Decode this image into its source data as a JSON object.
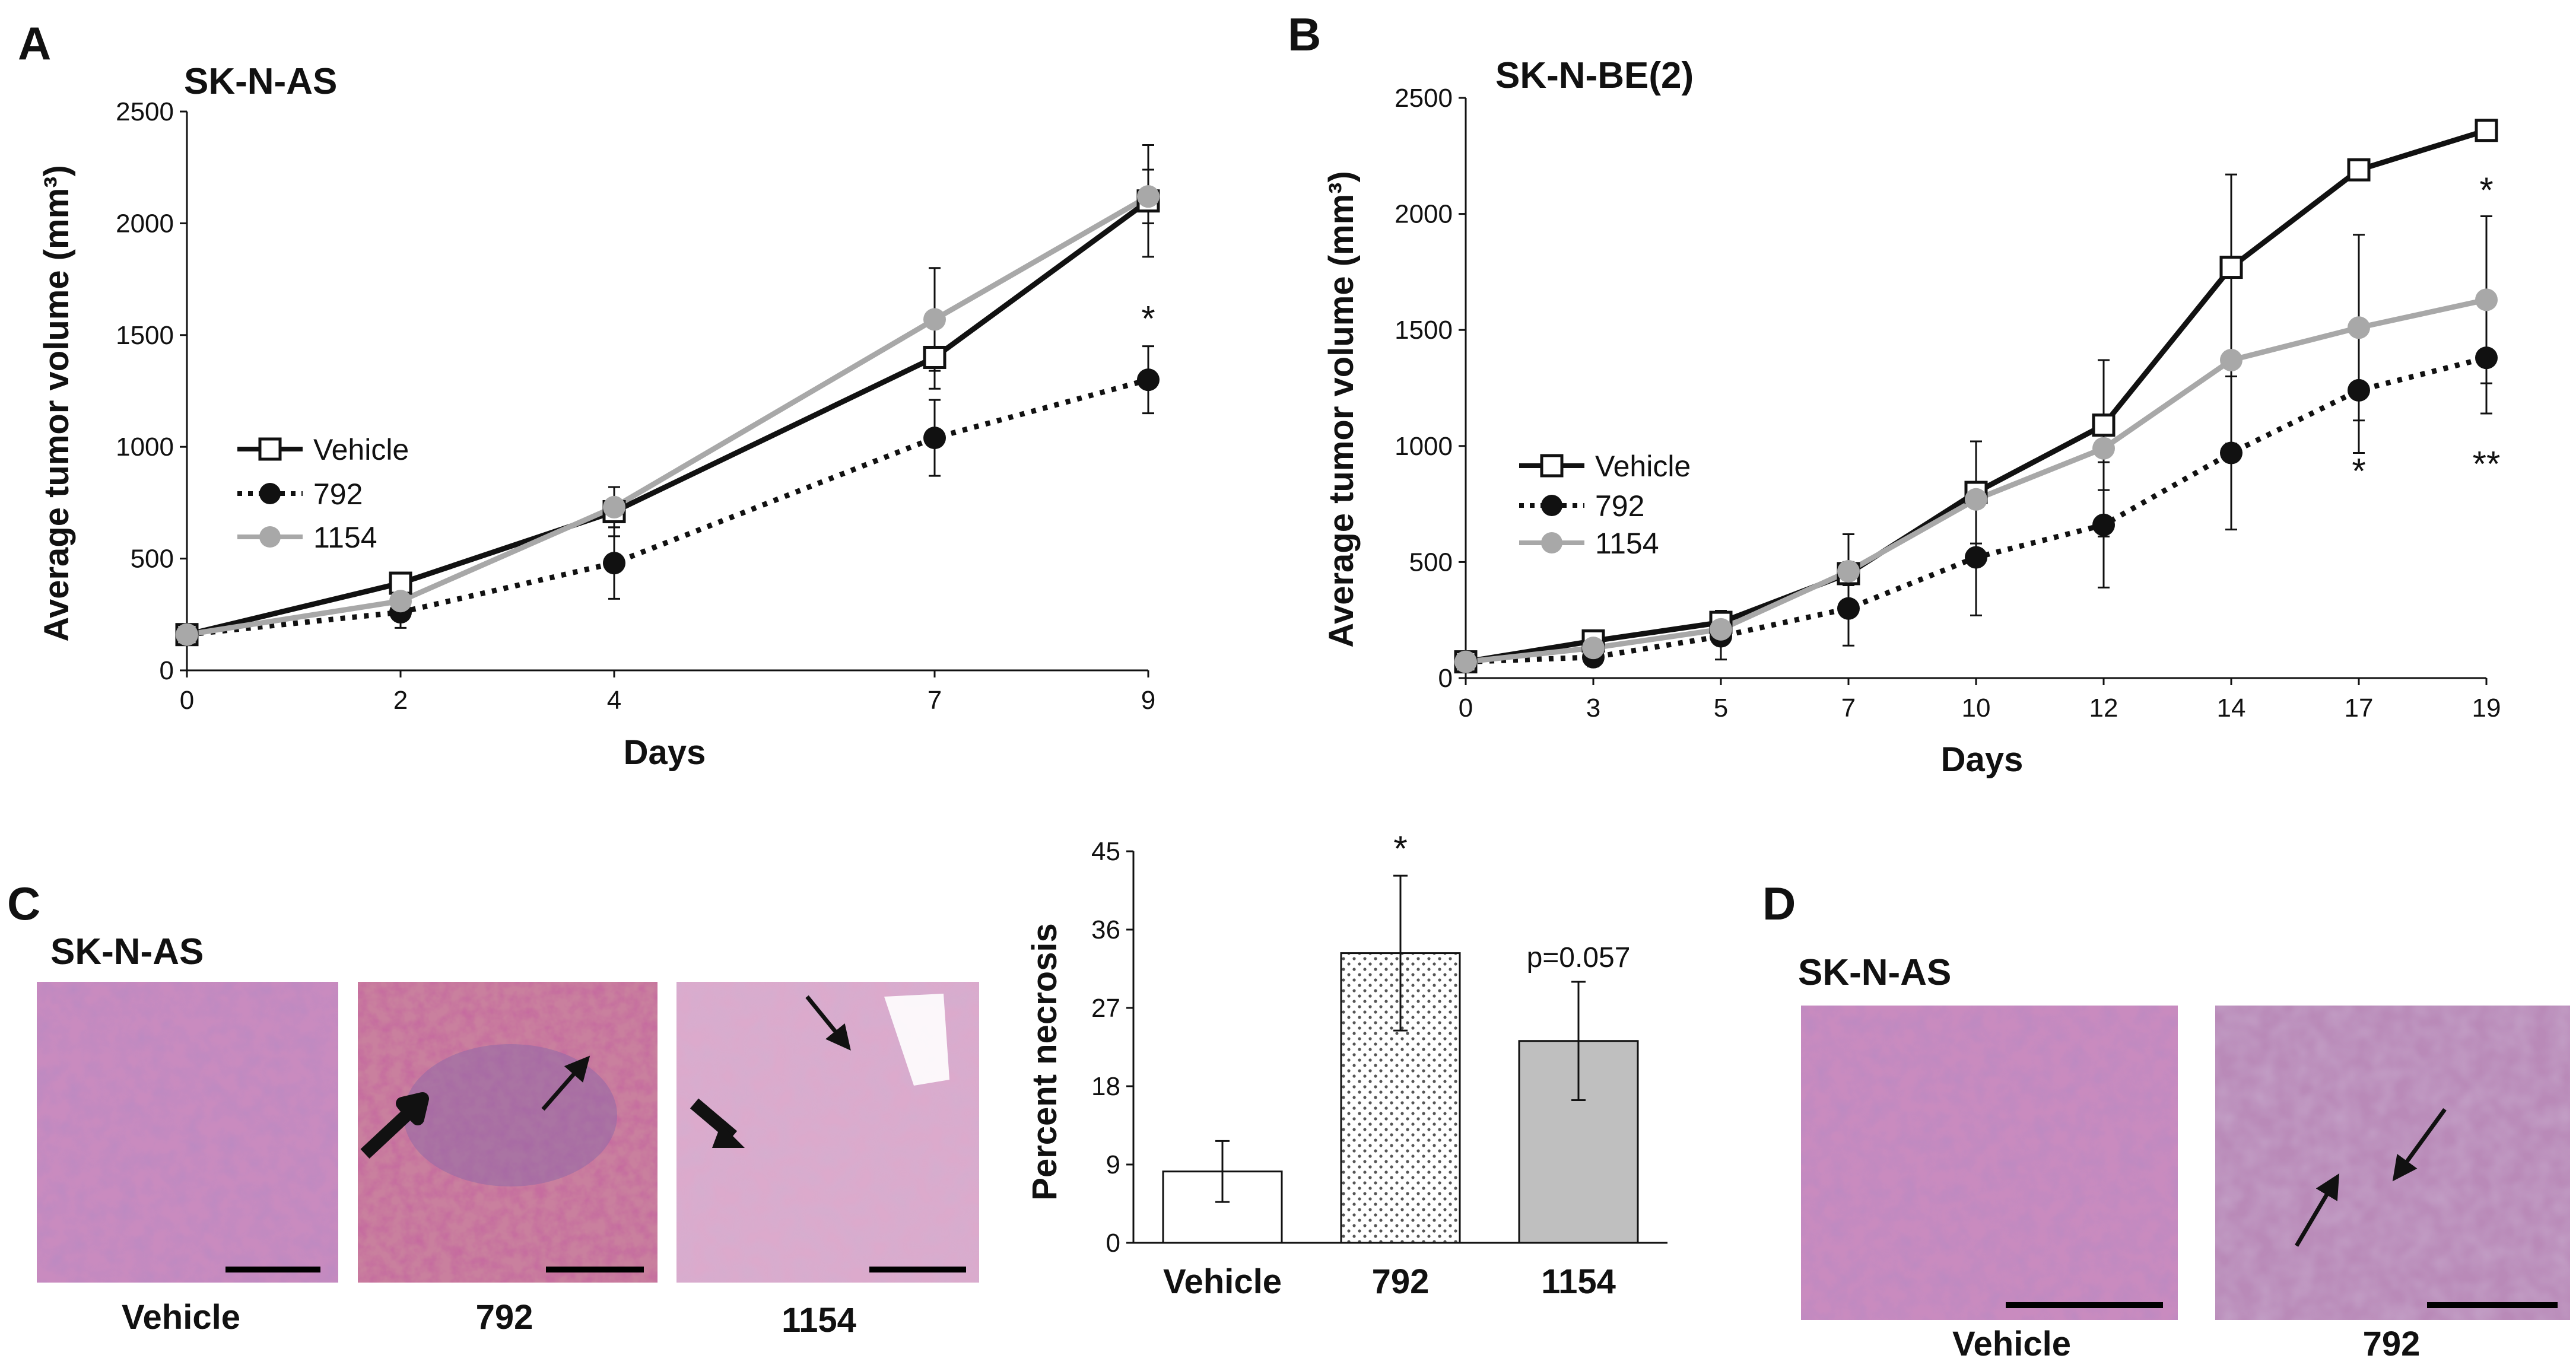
{
  "colors": {
    "vehicle": "#111111",
    "drug792": "#111111",
    "drug1154": "#a8a8a8",
    "bar_1154_fill": "#bfbfbf",
    "he_pink": "#c87db0",
    "he_purple": "#8e5a9e"
  },
  "panels": {
    "A": {
      "letter": "A"
    },
    "B": {
      "letter": "B"
    },
    "C": {
      "letter": "C",
      "cell_line": "SK-N-AS",
      "captions": [
        "Vehicle",
        "792",
        "1154"
      ]
    },
    "D": {
      "letter": "D",
      "cell_line": "SK-N-AS",
      "captions": [
        "Vehicle",
        "792"
      ]
    }
  },
  "chart_data": [
    {
      "id": "A",
      "type": "line",
      "title": "SK-N-AS",
      "xlabel": "Days",
      "ylabel": "Average tumor volume  (mm³)",
      "categories": [
        "0",
        "2",
        "4",
        "7",
        "9"
      ],
      "ylim": [
        0,
        2500
      ],
      "yticks": [
        0,
        500,
        1000,
        1500,
        2000,
        2500
      ],
      "legend_position": "middle-left",
      "series": [
        {
          "name": "Vehicle",
          "style": "solid-black-open-square",
          "values": [
            160,
            390,
            710,
            1400,
            2100
          ],
          "err": [
            30,
            40,
            110,
            140,
            250
          ]
        },
        {
          "name": "792",
          "style": "dotted-black-filled-circle",
          "values": [
            160,
            260,
            480,
            1040,
            1300
          ],
          "err": [
            30,
            70,
            160,
            170,
            150
          ]
        },
        {
          "name": "1154",
          "style": "solid-gray-filled-circle",
          "values": [
            160,
            310,
            730,
            1570,
            2120
          ],
          "err": [
            30,
            50,
            90,
            230,
            120
          ]
        }
      ],
      "annotations": [
        {
          "text": "*",
          "x": "9",
          "y": 1520
        }
      ]
    },
    {
      "id": "B",
      "type": "line",
      "title": "SK-N-BE(2)",
      "xlabel": "Days",
      "ylabel": "Average tumor volume  (mm³)",
      "categories": [
        "0",
        "3",
        "5",
        "7",
        "10",
        "12",
        "14",
        "17",
        "19"
      ],
      "ylim": [
        0,
        2500
      ],
      "yticks": [
        0,
        500,
        1000,
        1500,
        2000,
        2500
      ],
      "legend_position": "middle-left",
      "series": [
        {
          "name": "Vehicle",
          "style": "solid-black-open-square",
          "values": [
            70,
            160,
            240,
            450,
            800,
            1090,
            1770,
            2190,
            2360
          ],
          "err": [
            20,
            30,
            50,
            50,
            220,
            280,
            400,
            40,
            30
          ]
        },
        {
          "name": "792",
          "style": "dotted-black-filled-circle",
          "values": [
            70,
            90,
            180,
            300,
            520,
            660,
            970,
            1240,
            1380
          ],
          "err": [
            20,
            40,
            100,
            160,
            250,
            270,
            330,
            270,
            240
          ]
        },
        {
          "name": "1154",
          "style": "solid-gray-filled-circle",
          "values": [
            70,
            130,
            210,
            460,
            770,
            990,
            1370,
            1510,
            1630
          ],
          "err": [
            20,
            30,
            60,
            160,
            250,
            380,
            360,
            400,
            360
          ]
        }
      ],
      "annotations": [
        {
          "text": "*",
          "x": "19",
          "y": 2050
        },
        {
          "text": "*",
          "x": "17",
          "y": 840
        },
        {
          "text": "**",
          "x": "19",
          "y": 870
        }
      ]
    },
    {
      "id": "C-bar",
      "type": "bar",
      "title": "",
      "xlabel": "",
      "ylabel": "Percent necrosis",
      "categories": [
        "Vehicle",
        "792",
        "1154"
      ],
      "values": [
        8.2,
        33.3,
        23.2
      ],
      "err": [
        3.5,
        8.9,
        6.8
      ],
      "ylim": [
        0,
        45
      ],
      "yticks": [
        0,
        9,
        18,
        27,
        36,
        45
      ],
      "bar_styles": [
        "white",
        "dotted",
        "gray"
      ],
      "annotations": [
        {
          "text": "*",
          "category": "792"
        },
        {
          "text": "p=0.057",
          "category": "1154"
        }
      ]
    }
  ]
}
